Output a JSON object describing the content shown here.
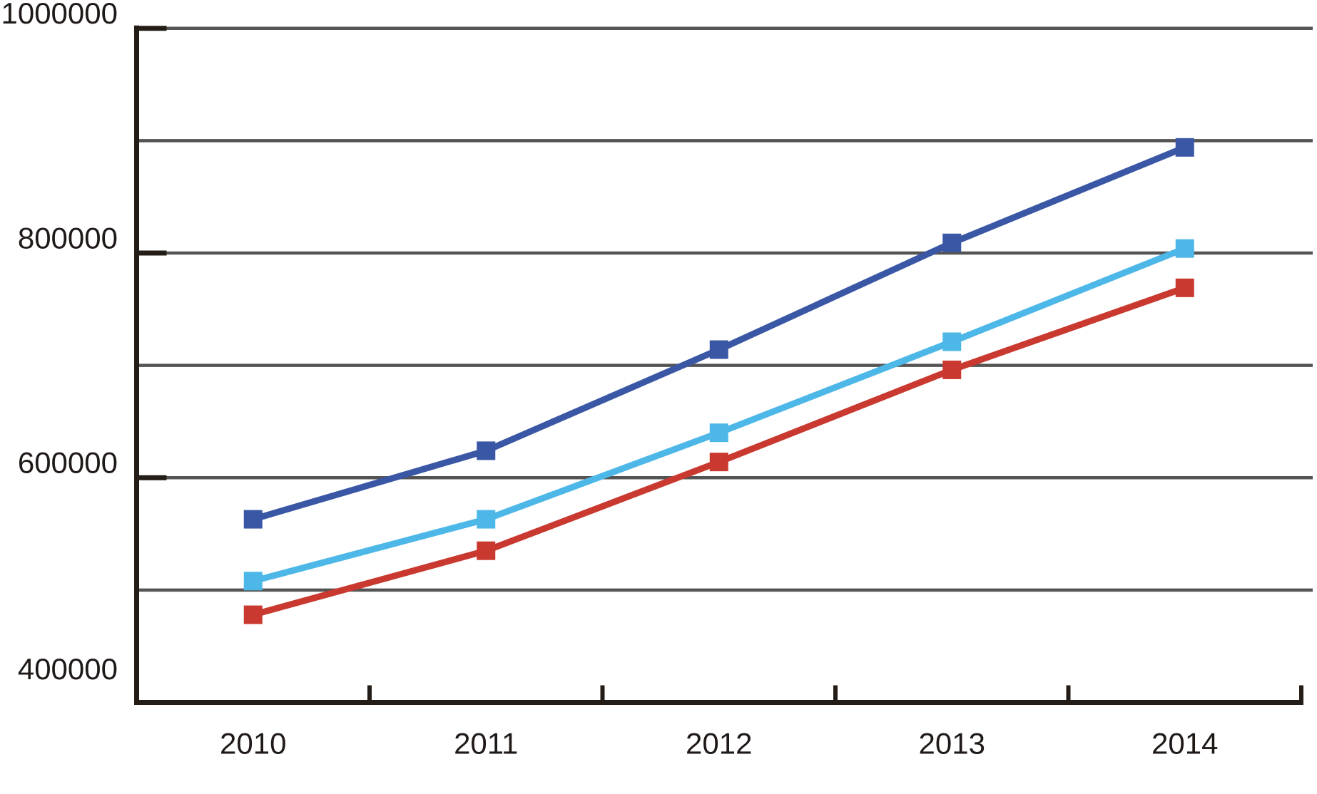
{
  "chart_data": {
    "type": "line",
    "categories": [
      "2010",
      "2011",
      "2012",
      "2013",
      "2014"
    ],
    "series": [
      {
        "name": "dark-blue",
        "color": "#3a57a5",
        "marker": "square",
        "values": [
          563000,
          624000,
          714000,
          809000,
          894000
        ]
      },
      {
        "name": "light-blue",
        "color": "#4db8e8",
        "marker": "square",
        "values": [
          508000,
          563000,
          640000,
          721000,
          804000
        ]
      },
      {
        "name": "red",
        "color": "#c9392f",
        "marker": "square",
        "values": [
          478000,
          535000,
          614000,
          696000,
          769000
        ]
      }
    ],
    "title": "",
    "xlabel": "",
    "ylabel": "",
    "ylim": [
      400000,
      1000000
    ],
    "gridline_step": 100000,
    "grid": true,
    "legend": false,
    "ytick_labels": [
      "1000000",
      "800000",
      "600000",
      "400000"
    ],
    "ytick_values": [
      1000000,
      800000,
      600000,
      400000
    ],
    "colors": {
      "gridline": "#545454",
      "axis": "#241c16",
      "text": "#1f1a18",
      "background": "#ffffff"
    }
  }
}
